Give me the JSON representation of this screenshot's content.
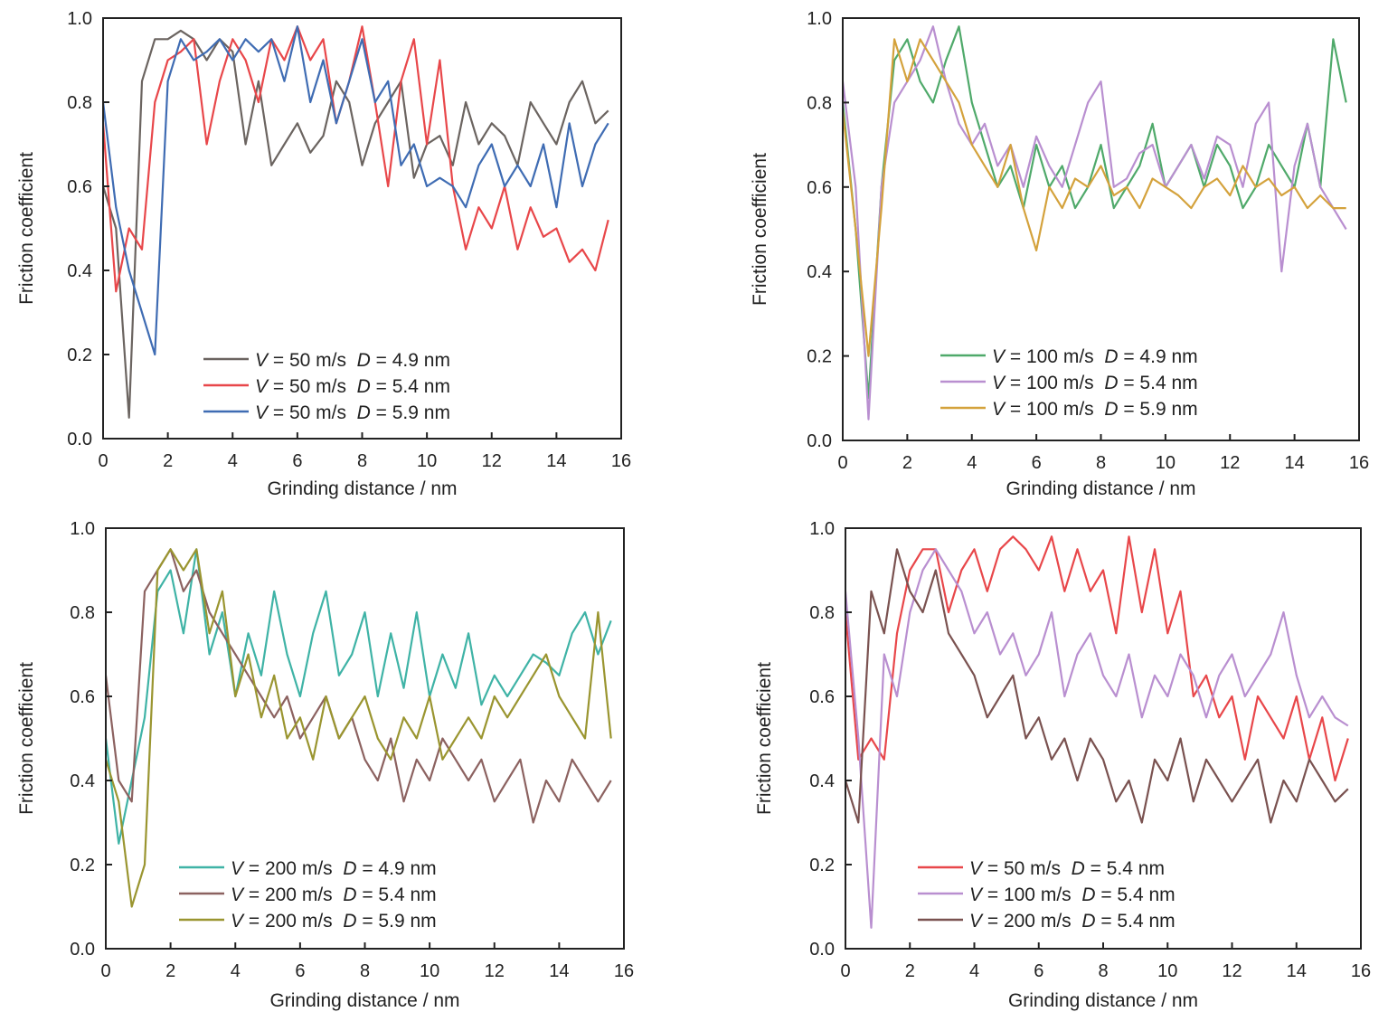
{
  "chart_data": [
    {
      "type": "line",
      "xlabel": "Grinding distance / nm",
      "ylabel": "Friction coefficient",
      "xlim": [
        0,
        16
      ],
      "ylim": [
        0,
        1.0
      ],
      "xticks": [
        "0",
        "2",
        "4",
        "6",
        "8",
        "10",
        "12",
        "14",
        "16"
      ],
      "yticks": [
        "0.0",
        "0.2",
        "0.4",
        "0.6",
        "0.8",
        "1.0"
      ],
      "grid": false,
      "legend": "bottom-center",
      "x": [
        0,
        0.4,
        0.8,
        1.2,
        1.6,
        2.0,
        2.4,
        2.8,
        3.2,
        3.6,
        4.0,
        4.4,
        4.8,
        5.2,
        5.6,
        6.0,
        6.4,
        6.8,
        7.2,
        7.6,
        8.0,
        8.4,
        8.8,
        9.2,
        9.6,
        10.0,
        10.4,
        10.8,
        11.2,
        11.6,
        12.0,
        12.4,
        12.8,
        13.2,
        13.6,
        14.0,
        14.4,
        14.8,
        15.2,
        15.6
      ],
      "series": [
        {
          "name": "V = 50 m/s  D = 4.9 nm",
          "color": "#6b6460",
          "values": [
            0.6,
            0.5,
            0.05,
            0.85,
            0.95,
            0.95,
            0.97,
            0.95,
            0.9,
            0.95,
            0.92,
            0.7,
            0.85,
            0.65,
            0.7,
            0.75,
            0.68,
            0.72,
            0.85,
            0.8,
            0.65,
            0.75,
            0.8,
            0.85,
            0.62,
            0.7,
            0.72,
            0.65,
            0.8,
            0.7,
            0.75,
            0.72,
            0.65,
            0.8,
            0.75,
            0.7,
            0.8,
            0.85,
            0.75,
            0.78
          ]
        },
        {
          "name": "V = 50 m/s  D = 5.4 nm",
          "color": "#e8474a",
          "values": [
            0.75,
            0.35,
            0.5,
            0.45,
            0.8,
            0.9,
            0.92,
            0.95,
            0.7,
            0.85,
            0.95,
            0.9,
            0.8,
            0.95,
            0.9,
            0.98,
            0.9,
            0.95,
            0.75,
            0.85,
            0.98,
            0.8,
            0.6,
            0.85,
            0.95,
            0.7,
            0.9,
            0.6,
            0.45,
            0.55,
            0.5,
            0.6,
            0.45,
            0.55,
            0.48,
            0.5,
            0.42,
            0.45,
            0.4,
            0.52
          ]
        },
        {
          "name": "V = 50 m/s  D = 5.9 nm",
          "color": "#3f6cb3",
          "values": [
            0.8,
            0.55,
            0.4,
            0.3,
            0.2,
            0.85,
            0.95,
            0.9,
            0.92,
            0.95,
            0.9,
            0.95,
            0.92,
            0.95,
            0.85,
            0.98,
            0.8,
            0.9,
            0.75,
            0.85,
            0.95,
            0.8,
            0.85,
            0.65,
            0.7,
            0.6,
            0.62,
            0.6,
            0.55,
            0.65,
            0.7,
            0.6,
            0.65,
            0.6,
            0.7,
            0.55,
            0.75,
            0.6,
            0.7,
            0.75
          ]
        }
      ]
    },
    {
      "type": "line",
      "xlabel": "Grinding distance / nm",
      "ylabel": "Friction coefficient",
      "xlim": [
        0,
        16
      ],
      "ylim": [
        0,
        1.0
      ],
      "xticks": [
        "0",
        "2",
        "4",
        "6",
        "8",
        "10",
        "12",
        "14",
        "16"
      ],
      "yticks": [
        "0.0",
        "0.2",
        "0.4",
        "0.6",
        "0.8",
        "1.0"
      ],
      "grid": false,
      "legend": "bottom-center",
      "x": [
        0,
        0.4,
        0.8,
        1.2,
        1.6,
        2.0,
        2.4,
        2.8,
        3.2,
        3.6,
        4.0,
        4.4,
        4.8,
        5.2,
        5.6,
        6.0,
        6.4,
        6.8,
        7.2,
        7.6,
        8.0,
        8.4,
        8.8,
        9.2,
        9.6,
        10.0,
        10.4,
        10.8,
        11.2,
        11.6,
        12.0,
        12.4,
        12.8,
        13.2,
        13.6,
        14.0,
        14.4,
        14.8,
        15.2,
        15.6
      ],
      "series": [
        {
          "name": "V = 100 m/s  D = 4.9 nm",
          "color": "#4fa96a",
          "values": [
            0.8,
            0.5,
            0.1,
            0.6,
            0.9,
            0.95,
            0.85,
            0.8,
            0.9,
            0.98,
            0.8,
            0.7,
            0.6,
            0.65,
            0.55,
            0.7,
            0.6,
            0.65,
            0.55,
            0.6,
            0.7,
            0.55,
            0.6,
            0.65,
            0.75,
            0.6,
            0.65,
            0.7,
            0.6,
            0.7,
            0.65,
            0.55,
            0.6,
            0.7,
            0.65,
            0.6,
            0.75,
            0.6,
            0.95,
            0.8
          ]
        },
        {
          "name": "V = 100 m/s  D = 5.4 nm",
          "color": "#b98fd0",
          "values": [
            0.85,
            0.6,
            0.05,
            0.6,
            0.8,
            0.85,
            0.9,
            0.98,
            0.85,
            0.75,
            0.7,
            0.75,
            0.65,
            0.7,
            0.6,
            0.72,
            0.65,
            0.6,
            0.7,
            0.8,
            0.85,
            0.6,
            0.62,
            0.68,
            0.7,
            0.6,
            0.65,
            0.7,
            0.62,
            0.72,
            0.7,
            0.6,
            0.75,
            0.8,
            0.4,
            0.65,
            0.75,
            0.6,
            0.55,
            0.5
          ]
        },
        {
          "name": "V = 100 m/s  D = 5.9 nm",
          "color": "#d4a23c",
          "values": [
            0.78,
            0.5,
            0.2,
            0.55,
            0.95,
            0.85,
            0.95,
            0.9,
            0.85,
            0.8,
            0.7,
            0.65,
            0.6,
            0.7,
            0.55,
            0.45,
            0.6,
            0.55,
            0.62,
            0.6,
            0.65,
            0.58,
            0.6,
            0.55,
            0.62,
            0.6,
            0.58,
            0.55,
            0.6,
            0.62,
            0.58,
            0.65,
            0.6,
            0.62,
            0.58,
            0.6,
            0.55,
            0.58,
            0.55,
            0.55
          ]
        }
      ]
    },
    {
      "type": "line",
      "xlabel": "Grinding distance / nm",
      "ylabel": "Friction coefficient",
      "xlim": [
        0,
        16
      ],
      "ylim": [
        0,
        1.0
      ],
      "xticks": [
        "0",
        "2",
        "4",
        "6",
        "8",
        "10",
        "12",
        "14",
        "16"
      ],
      "yticks": [
        "0.0",
        "0.2",
        "0.4",
        "0.6",
        "0.8",
        "1.0"
      ],
      "grid": false,
      "legend": "bottom-center",
      "x": [
        0,
        0.4,
        0.8,
        1.2,
        1.6,
        2.0,
        2.4,
        2.8,
        3.2,
        3.6,
        4.0,
        4.4,
        4.8,
        5.2,
        5.6,
        6.0,
        6.4,
        6.8,
        7.2,
        7.6,
        8.0,
        8.4,
        8.8,
        9.2,
        9.6,
        10.0,
        10.4,
        10.8,
        11.2,
        11.6,
        12.0,
        12.4,
        12.8,
        13.2,
        13.6,
        14.0,
        14.4,
        14.8,
        15.2,
        15.6
      ],
      "series": [
        {
          "name": "V = 200 m/s  D = 4.9 nm",
          "color": "#3fb3a6",
          "values": [
            0.5,
            0.25,
            0.4,
            0.55,
            0.85,
            0.9,
            0.75,
            0.95,
            0.7,
            0.8,
            0.6,
            0.75,
            0.65,
            0.85,
            0.7,
            0.6,
            0.75,
            0.85,
            0.65,
            0.7,
            0.8,
            0.6,
            0.75,
            0.62,
            0.8,
            0.6,
            0.7,
            0.62,
            0.75,
            0.58,
            0.65,
            0.6,
            0.65,
            0.7,
            0.68,
            0.65,
            0.75,
            0.8,
            0.7,
            0.78
          ]
        },
        {
          "name": "V = 200 m/s  D = 5.4 nm",
          "color": "#8c6260",
          "values": [
            0.65,
            0.4,
            0.35,
            0.85,
            0.9,
            0.95,
            0.85,
            0.9,
            0.8,
            0.75,
            0.7,
            0.65,
            0.6,
            0.55,
            0.6,
            0.5,
            0.55,
            0.6,
            0.5,
            0.55,
            0.45,
            0.4,
            0.5,
            0.35,
            0.45,
            0.4,
            0.5,
            0.45,
            0.4,
            0.45,
            0.35,
            0.4,
            0.45,
            0.3,
            0.4,
            0.35,
            0.45,
            0.4,
            0.35,
            0.4
          ]
        },
        {
          "name": "V = 200 m/s  D = 5.9 nm",
          "color": "#9a9530",
          "values": [
            0.45,
            0.35,
            0.1,
            0.2,
            0.9,
            0.95,
            0.9,
            0.95,
            0.75,
            0.85,
            0.6,
            0.7,
            0.55,
            0.65,
            0.5,
            0.55,
            0.45,
            0.6,
            0.5,
            0.55,
            0.6,
            0.5,
            0.45,
            0.55,
            0.5,
            0.6,
            0.45,
            0.5,
            0.55,
            0.5,
            0.6,
            0.55,
            0.6,
            0.65,
            0.7,
            0.6,
            0.55,
            0.5,
            0.8,
            0.5
          ]
        }
      ]
    },
    {
      "type": "line",
      "xlabel": "Grinding distance / nm",
      "ylabel": "Friction coefficient",
      "xlim": [
        0,
        16
      ],
      "ylim": [
        0,
        1.0
      ],
      "xticks": [
        "0",
        "2",
        "4",
        "6",
        "8",
        "10",
        "12",
        "14",
        "16"
      ],
      "yticks": [
        "0.0",
        "0.2",
        "0.4",
        "0.6",
        "0.8",
        "1.0"
      ],
      "grid": false,
      "legend": "bottom-center",
      "x": [
        0,
        0.4,
        0.8,
        1.2,
        1.6,
        2.0,
        2.4,
        2.8,
        3.2,
        3.6,
        4.0,
        4.4,
        4.8,
        5.2,
        5.6,
        6.0,
        6.4,
        6.8,
        7.2,
        7.6,
        8.0,
        8.4,
        8.8,
        9.2,
        9.6,
        10.0,
        10.4,
        10.8,
        11.2,
        11.6,
        12.0,
        12.4,
        12.8,
        13.2,
        13.6,
        14.0,
        14.4,
        14.8,
        15.2,
        15.6
      ],
      "series": [
        {
          "name": "V = 50 m/s  D = 5.4 nm",
          "color": "#e8474a",
          "values": [
            0.8,
            0.45,
            0.5,
            0.45,
            0.75,
            0.9,
            0.95,
            0.95,
            0.8,
            0.9,
            0.95,
            0.85,
            0.95,
            0.98,
            0.95,
            0.9,
            0.98,
            0.85,
            0.95,
            0.85,
            0.9,
            0.75,
            0.98,
            0.8,
            0.95,
            0.75,
            0.85,
            0.6,
            0.65,
            0.55,
            0.6,
            0.45,
            0.6,
            0.55,
            0.5,
            0.6,
            0.45,
            0.55,
            0.4,
            0.5
          ]
        },
        {
          "name": "V = 100 m/s  D = 5.4 nm",
          "color": "#b98fd0",
          "values": [
            0.85,
            0.5,
            0.05,
            0.7,
            0.6,
            0.8,
            0.9,
            0.95,
            0.9,
            0.85,
            0.75,
            0.8,
            0.7,
            0.75,
            0.65,
            0.7,
            0.8,
            0.6,
            0.7,
            0.75,
            0.65,
            0.6,
            0.7,
            0.55,
            0.65,
            0.6,
            0.7,
            0.65,
            0.55,
            0.65,
            0.7,
            0.6,
            0.65,
            0.7,
            0.8,
            0.65,
            0.55,
            0.6,
            0.55,
            0.53
          ]
        },
        {
          "name": "V = 200 m/s  D = 5.4 nm",
          "color": "#7a5250",
          "values": [
            0.4,
            0.3,
            0.85,
            0.75,
            0.95,
            0.85,
            0.8,
            0.9,
            0.75,
            0.7,
            0.65,
            0.55,
            0.6,
            0.65,
            0.5,
            0.55,
            0.45,
            0.5,
            0.4,
            0.5,
            0.45,
            0.35,
            0.4,
            0.3,
            0.45,
            0.4,
            0.5,
            0.35,
            0.45,
            0.4,
            0.35,
            0.4,
            0.45,
            0.3,
            0.4,
            0.35,
            0.45,
            0.4,
            0.35,
            0.38
          ]
        }
      ]
    }
  ]
}
